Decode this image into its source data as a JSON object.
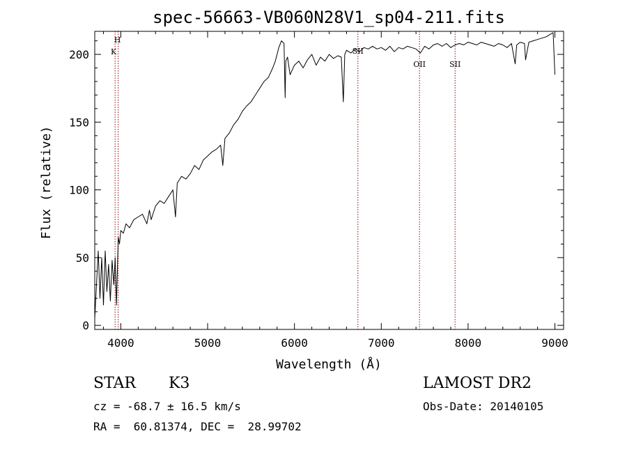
{
  "chart_data": {
    "type": "line",
    "title": "spec-56663-VB060N28V1_sp04-211.fits",
    "xlabel": "Wavelength (Å)",
    "ylabel": "Flux (relative)",
    "xlim": [
      3700,
      9100
    ],
    "ylim": [
      -3,
      217
    ],
    "grid": false,
    "x_ticks": [
      4000,
      5000,
      6000,
      7000,
      8000,
      9000
    ],
    "x_tick_labels": [
      "4000",
      "5000",
      "6000",
      "7000",
      "8000",
      "9000"
    ],
    "y_ticks": [
      0,
      50,
      100,
      150,
      200
    ],
    "y_tick_labels": [
      "0",
      "50",
      "100",
      "150",
      "200"
    ],
    "series": [
      {
        "line_color": "#000000",
        "x": [
          3700,
          3720,
          3740,
          3760,
          3780,
          3800,
          3820,
          3840,
          3860,
          3880,
          3900,
          3920,
          3935,
          3950,
          3970,
          3985,
          4000,
          4030,
          4060,
          4100,
          4150,
          4200,
          4250,
          4300,
          4330,
          4350,
          4400,
          4450,
          4500,
          4550,
          4600,
          4630,
          4650,
          4700,
          4750,
          4800,
          4850,
          4900,
          4950,
          5000,
          5050,
          5100,
          5150,
          5175,
          5200,
          5250,
          5300,
          5350,
          5400,
          5450,
          5500,
          5550,
          5600,
          5650,
          5700,
          5750,
          5780,
          5800,
          5820,
          5850,
          5880,
          5893,
          5900,
          5920,
          5950,
          6000,
          6050,
          6100,
          6150,
          6200,
          6250,
          6300,
          6350,
          6400,
          6450,
          6500,
          6540,
          6563,
          6580,
          6600,
          6650,
          6700,
          6750,
          6800,
          6850,
          6900,
          6950,
          7000,
          7050,
          7100,
          7150,
          7200,
          7250,
          7300,
          7350,
          7400,
          7450,
          7500,
          7550,
          7600,
          7650,
          7700,
          7750,
          7800,
          7850,
          7900,
          7950,
          8000,
          8050,
          8100,
          8150,
          8200,
          8250,
          8300,
          8350,
          8400,
          8450,
          8500,
          8542,
          8560,
          8600,
          8650,
          8662,
          8700,
          8750,
          8800,
          8850,
          8900,
          8950,
          8980,
          9000
        ],
        "y": [
          5,
          30,
          55,
          20,
          50,
          15,
          55,
          25,
          45,
          18,
          48,
          30,
          50,
          15,
          65,
          60,
          70,
          68,
          75,
          72,
          78,
          80,
          82,
          75,
          85,
          78,
          88,
          92,
          90,
          95,
          100,
          80,
          105,
          110,
          108,
          112,
          118,
          115,
          122,
          125,
          128,
          130,
          133,
          118,
          138,
          142,
          148,
          152,
          158,
          162,
          165,
          170,
          175,
          180,
          183,
          190,
          195,
          200,
          205,
          210,
          208,
          168,
          195,
          198,
          185,
          192,
          195,
          190,
          196,
          200,
          192,
          198,
          195,
          200,
          197,
          199,
          198,
          165,
          200,
          203,
          201,
          204,
          202,
          205,
          204,
          206,
          204,
          205,
          203,
          206,
          202,
          205,
          204,
          206,
          205,
          204,
          201,
          206,
          204,
          207,
          208,
          206,
          208,
          205,
          207,
          208,
          207,
          209,
          208,
          207,
          209,
          208,
          207,
          206,
          208,
          207,
          205,
          208,
          193,
          207,
          209,
          208,
          196,
          209,
          210,
          211,
          212,
          213,
          215,
          216,
          185
        ]
      }
    ],
    "line_markers": [
      {
        "label": "H",
        "x": 3970,
        "color": "#8B0000"
      },
      {
        "label": "K",
        "x": 3934,
        "color": "#8B0000"
      },
      {
        "label": "SII",
        "x": 6731,
        "color": "#8B0000"
      },
      {
        "label": "OII",
        "x": 7440,
        "color": "#8B0000"
      },
      {
        "label": "SII",
        "x": 7850,
        "color": "#8B0000"
      }
    ]
  },
  "info": {
    "class_label": "STAR",
    "subclass_label": "K3",
    "cz_text": "cz = -68.7 ± 16.5 km/s",
    "radec_text": "RA =  60.81374, DEC =  28.99702",
    "survey_label": "LAMOST DR2",
    "obsdate_text": "Obs-Date: 20140105"
  }
}
